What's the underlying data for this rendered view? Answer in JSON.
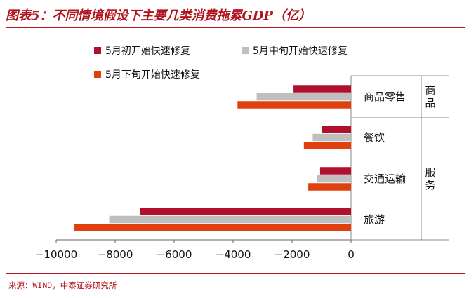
{
  "header": {
    "title": "图表5：不同情境假设下主要几类消费拖累GDP（亿）"
  },
  "footer": {
    "source": "来源：WIND，中泰证券研究所"
  },
  "chart_data": {
    "type": "bar",
    "orientation": "horizontal",
    "title": "图表5：不同情境假设下主要几类消费拖累GDP（亿）",
    "categories": [
      "商品零售",
      "餐饮",
      "交通运输",
      "旅游"
    ],
    "groups": [
      {
        "name": "商品",
        "categories": [
          "商品零售"
        ]
      },
      {
        "name": "服务",
        "categories": [
          "餐饮",
          "交通运输",
          "旅游"
        ]
      }
    ],
    "series": [
      {
        "name": "5月初开始快速修复",
        "color": "#b0102e",
        "values": [
          -1950,
          -1000,
          -1050,
          -7150
        ]
      },
      {
        "name": "5月中旬开始快速修复",
        "color": "#bfbfbf",
        "values": [
          -3200,
          -1300,
          -1150,
          -8200
        ]
      },
      {
        "name": "5月下旬开始快速修复",
        "color": "#e0400b",
        "values": [
          -3850,
          -1600,
          -1450,
          -9400
        ]
      }
    ],
    "xlim": [
      -10000,
      0
    ],
    "xticks": [
      -10000,
      -8000,
      -6000,
      -4000,
      -2000,
      0
    ],
    "xtick_labels": [
      "−10000",
      "−8000",
      "−6000",
      "−4000",
      "−2000",
      "0"
    ],
    "xlabel": "",
    "ylabel": "",
    "grid": false,
    "legend_position": "top-left"
  }
}
